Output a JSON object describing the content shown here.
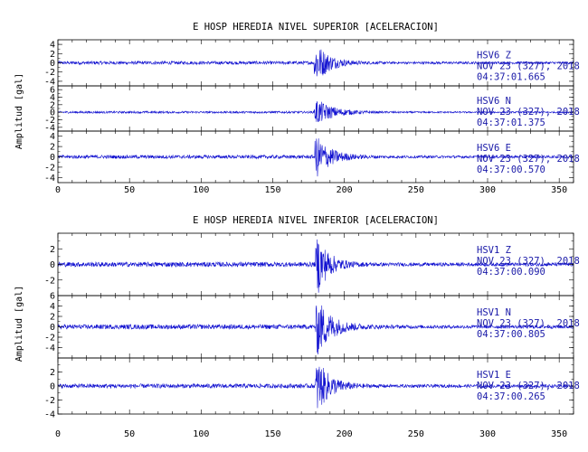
{
  "chart_data": [
    {
      "type": "line",
      "title": "E HOSP HEREDIA NIVEL SUPERIOR [ACELERACION]",
      "ylabel": "Amplitud [gal]",
      "xlabel": "",
      "xlim": [
        0,
        360
      ],
      "x_ticks": [
        "0",
        "50",
        "100",
        "150",
        "200",
        "250",
        "300",
        "350"
      ],
      "trace_color": "#1010d0",
      "panels": [
        {
          "station": "HSV6",
          "component": "Z",
          "date": "NOV 23 (327), 2018",
          "time": "04:37:01.665",
          "ylim": [
            -5,
            5
          ],
          "y_ticks": [
            -4,
            -2,
            0,
            2,
            4
          ],
          "peak": 4.5,
          "onset": 179,
          "decay": 9
        },
        {
          "station": "HSV6",
          "component": "N",
          "date": "NOV 23 (327), 2018",
          "time": "04:37:01.375",
          "ylim": [
            -5,
            7
          ],
          "y_ticks": [
            -4,
            -2,
            0,
            2,
            4,
            6
          ],
          "peak": 3.5,
          "onset": 179,
          "decay": 12
        },
        {
          "station": "HSV6",
          "component": "E",
          "date": "NOV 23 (327), 2018",
          "time": "04:37:00.570",
          "ylim": [
            -5,
            5
          ],
          "y_ticks": [
            -4,
            -2,
            0,
            2,
            4
          ],
          "peak": 4.2,
          "onset": 179,
          "decay": 10
        }
      ]
    },
    {
      "type": "line",
      "title": "E HOSP HEREDIA NIVEL INFERIOR [ACELERACION]",
      "ylabel": "Amplitud [gal]",
      "xlabel": "",
      "xlim": [
        0,
        360
      ],
      "x_ticks": [
        "0",
        "50",
        "100",
        "150",
        "200",
        "250",
        "300",
        "350"
      ],
      "trace_color": "#1010d0",
      "panels": [
        {
          "station": "HSV1",
          "component": "Z",
          "date": "NOV 23 (327), 2018",
          "time": "04:37:00.090",
          "ylim": [
            -4,
            4
          ],
          "y_ticks": [
            -2,
            0,
            2
          ],
          "peak": 3.8,
          "onset": 180,
          "decay": 8
        },
        {
          "station": "HSV1",
          "component": "N",
          "date": "NOV 23 (327), 2018",
          "time": "04:37:00.805",
          "ylim": [
            -6,
            6
          ],
          "y_ticks": [
            -4,
            -2,
            0,
            2,
            4,
            6
          ],
          "peak": 5.5,
          "onset": 180,
          "decay": 10
        },
        {
          "station": "HSV1",
          "component": "E",
          "date": "NOV 23 (327), 2018",
          "time": "04:37:00.265",
          "ylim": [
            -4,
            4
          ],
          "y_ticks": [
            -4,
            -2,
            0,
            2
          ],
          "peak": 3.8,
          "onset": 180,
          "decay": 9
        }
      ]
    }
  ]
}
